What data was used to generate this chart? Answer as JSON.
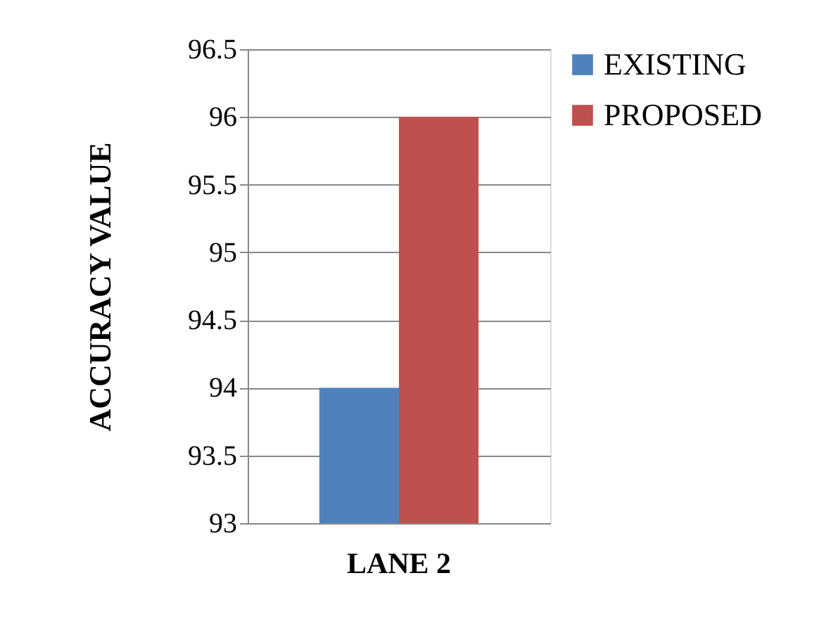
{
  "chart_data": {
    "type": "bar",
    "ylabel": "ACCURACY VALUE",
    "categories": [
      "LANE 2"
    ],
    "series": [
      {
        "name": "EXISTING",
        "color": "#4f81bd",
        "values": [
          94
        ]
      },
      {
        "name": "PROPOSED",
        "color": "#c0504d",
        "values": [
          96
        ]
      }
    ],
    "ylim": [
      93,
      96.5
    ],
    "yticks": [
      93,
      93.5,
      94,
      94.5,
      95,
      95.5,
      96,
      96.5
    ],
    "grid": "y",
    "legend": "right"
  }
}
